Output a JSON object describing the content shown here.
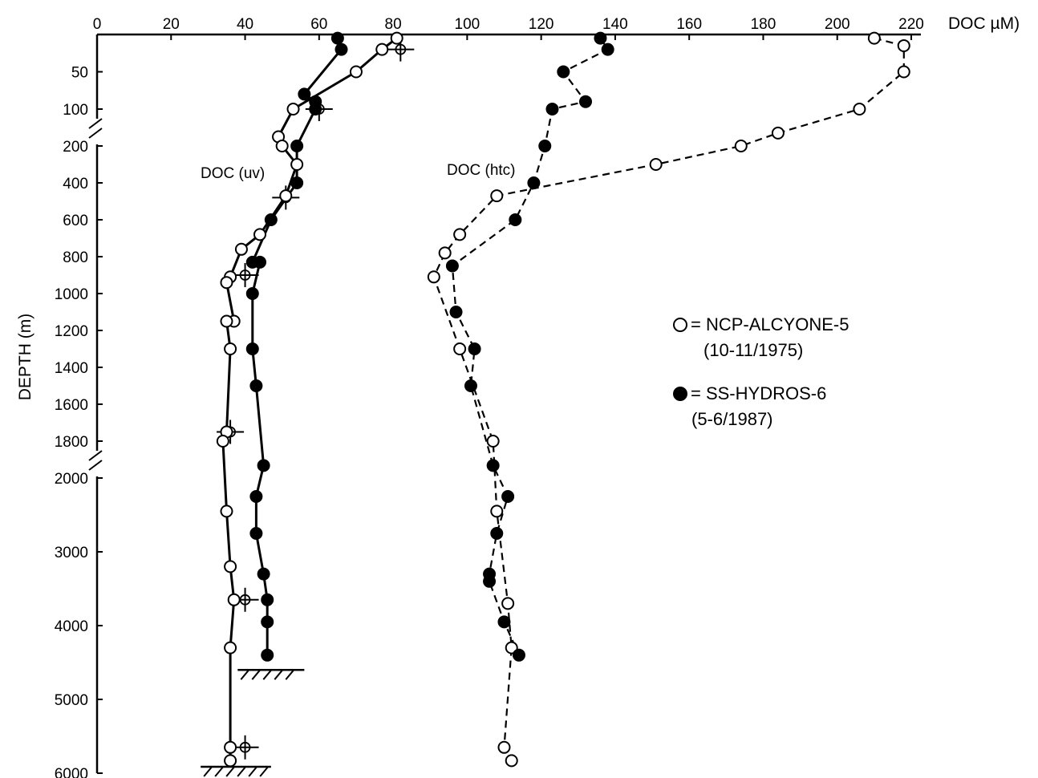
{
  "chart_data": {
    "type": "scatter",
    "title": "",
    "xlabel": "DOC µM)",
    "ylabel": "DEPTH (m)",
    "xlim": [
      0,
      220
    ],
    "x_ticks": [
      "0",
      "20",
      "40",
      "60",
      "80",
      "100",
      "120",
      "140",
      "160",
      "180",
      "200",
      "220"
    ],
    "y_scale": "broken linear (0-100, 100-1800, 1800-6000)",
    "y_ticks": [
      "50",
      "100",
      "200",
      "400",
      "600",
      "800",
      "1000",
      "1200",
      "1400",
      "1600",
      "1800",
      "2000",
      "3000",
      "4000",
      "5000",
      "6000"
    ],
    "annotations": [
      "DOC (uv)",
      "DOC (htc)"
    ],
    "legend": [
      {
        "symbol": "open-circle",
        "label": "= NCP-ALCYONE-5",
        "sublabel": "(10-11/1975)"
      },
      {
        "symbol": "filled-circle",
        "label": "= SS-HYDROS-6",
        "sublabel": "(5-6/1987)"
      }
    ],
    "legend_position": "right",
    "series": [
      {
        "method": "uv",
        "marker": "open",
        "line": "solid",
        "points": [
          [
            81,
            5
          ],
          [
            77,
            20
          ],
          [
            70,
            50
          ],
          [
            53,
            100
          ],
          [
            49,
            150
          ],
          [
            50,
            200
          ],
          [
            54,
            300
          ],
          [
            51,
            470
          ],
          [
            44,
            680
          ],
          [
            39,
            760
          ],
          [
            36,
            910
          ],
          [
            35,
            940
          ],
          [
            37,
            1150
          ],
          [
            35,
            1150
          ],
          [
            36,
            1300
          ],
          [
            35,
            1750
          ],
          [
            34,
            1800
          ],
          [
            35,
            2450
          ],
          [
            36,
            3200
          ],
          [
            37,
            3650
          ],
          [
            36,
            4300
          ],
          [
            36,
            5650
          ],
          [
            36,
            5830
          ]
        ]
      },
      {
        "method": "uv",
        "marker": "filled",
        "line": "solid",
        "points": [
          [
            65,
            5
          ],
          [
            66,
            20
          ],
          [
            56,
            80
          ],
          [
            59,
            90
          ],
          [
            59,
            100
          ],
          [
            54,
            200
          ],
          [
            54,
            400
          ],
          [
            47,
            600
          ],
          [
            42,
            830
          ],
          [
            44,
            830
          ],
          [
            42,
            1000
          ],
          [
            42,
            1300
          ],
          [
            43,
            1500
          ],
          [
            45,
            1830
          ],
          [
            43,
            2250
          ],
          [
            43,
            2750
          ],
          [
            45,
            3300
          ],
          [
            46,
            3650
          ],
          [
            46,
            3950
          ],
          [
            46,
            4400
          ]
        ]
      },
      {
        "method": "htc",
        "marker": "open",
        "line": "dashed",
        "points": [
          [
            210,
            5
          ],
          [
            218,
            15
          ],
          [
            218,
            50
          ],
          [
            206,
            100
          ],
          [
            184,
            130
          ],
          [
            174,
            200
          ],
          [
            151,
            300
          ],
          [
            108,
            470
          ],
          [
            98,
            680
          ],
          [
            94,
            780
          ],
          [
            91,
            910
          ],
          [
            98,
            1300
          ],
          [
            107,
            1800
          ],
          [
            108,
            2450
          ],
          [
            111,
            3700
          ],
          [
            112,
            4300
          ],
          [
            110,
            5650
          ],
          [
            112,
            5830
          ]
        ]
      },
      {
        "method": "htc",
        "marker": "filled",
        "line": "dashed",
        "points": [
          [
            136,
            5
          ],
          [
            138,
            20
          ],
          [
            126,
            50
          ],
          [
            132,
            90
          ],
          [
            123,
            100
          ],
          [
            121,
            200
          ],
          [
            118,
            400
          ],
          [
            113,
            600
          ],
          [
            96,
            850
          ],
          [
            97,
            1100
          ],
          [
            102,
            1300
          ],
          [
            101,
            1500
          ],
          [
            107,
            1830
          ],
          [
            111,
            2250
          ],
          [
            108,
            2750
          ],
          [
            106,
            3300
          ],
          [
            106,
            3400
          ],
          [
            110,
            3950
          ],
          [
            114,
            4400
          ]
        ]
      }
    ],
    "markers_with_crosshairs": [
      [
        82,
        20
      ],
      [
        60,
        100
      ],
      [
        51,
        480
      ],
      [
        40,
        900
      ],
      [
        36,
        1750
      ],
      [
        40,
        3650
      ],
      [
        40,
        5650
      ]
    ],
    "bottom_markers": [
      {
        "x_range": [
          38,
          56
        ],
        "depth": 4600
      },
      {
        "x_range": [
          28,
          47
        ],
        "depth": 6000
      }
    ]
  }
}
